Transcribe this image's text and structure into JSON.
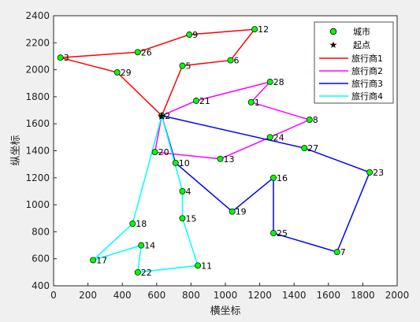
{
  "chart_data": {
    "type": "scatter",
    "title": "",
    "xlabel": "横坐标",
    "ylabel": "纵坐标",
    "xlim": [
      0,
      2000
    ],
    "ylim": [
      400,
      2400
    ],
    "xticks": [
      0,
      200,
      400,
      600,
      800,
      1000,
      1200,
      1400,
      1600,
      1800,
      2000
    ],
    "yticks": [
      400,
      600,
      800,
      1000,
      1200,
      1400,
      1600,
      1800,
      2000,
      2200,
      2400
    ],
    "grid": false,
    "legend_position": "top-right",
    "legend": {
      "cities": "城市",
      "start": "起点",
      "route1": "旅行商1",
      "route2": "旅行商2",
      "route3": "旅行商3",
      "route4": "旅行商4"
    },
    "start_city": "2",
    "cities": [
      {
        "id": "1",
        "x": 1150,
        "y": 1760
      },
      {
        "id": "2",
        "x": 630,
        "y": 1660
      },
      {
        "id": "3",
        "x": 40,
        "y": 2090
      },
      {
        "id": "4",
        "x": 750,
        "y": 1100
      },
      {
        "id": "5",
        "x": 750,
        "y": 2030
      },
      {
        "id": "6",
        "x": 1030,
        "y": 2070
      },
      {
        "id": "7",
        "x": 1650,
        "y": 650
      },
      {
        "id": "8",
        "x": 1490,
        "y": 1630
      },
      {
        "id": "9",
        "x": 790,
        "y": 2260
      },
      {
        "id": "10",
        "x": 710,
        "y": 1310
      },
      {
        "id": "11",
        "x": 840,
        "y": 550
      },
      {
        "id": "12",
        "x": 1170,
        "y": 2300
      },
      {
        "id": "13",
        "x": 970,
        "y": 1340
      },
      {
        "id": "14",
        "x": 510,
        "y": 700
      },
      {
        "id": "15",
        "x": 750,
        "y": 900
      },
      {
        "id": "16",
        "x": 1280,
        "y": 1200
      },
      {
        "id": "17",
        "x": 230,
        "y": 590
      },
      {
        "id": "18",
        "x": 460,
        "y": 860
      },
      {
        "id": "19",
        "x": 1040,
        "y": 950
      },
      {
        "id": "20",
        "x": 590,
        "y": 1390
      },
      {
        "id": "21",
        "x": 830,
        "y": 1770
      },
      {
        "id": "22",
        "x": 490,
        "y": 500
      },
      {
        "id": "23",
        "x": 1840,
        "y": 1240
      },
      {
        "id": "24",
        "x": 1260,
        "y": 1500
      },
      {
        "id": "25",
        "x": 1280,
        "y": 790
      },
      {
        "id": "26",
        "x": 490,
        "y": 2130
      },
      {
        "id": "27",
        "x": 1460,
        "y": 1420
      },
      {
        "id": "28",
        "x": 1260,
        "y": 1910
      },
      {
        "id": "29",
        "x": 370,
        "y": 1980
      }
    ],
    "routes": [
      {
        "name": "旅行商1",
        "color": "#ff0000",
        "path": [
          "2",
          "5",
          "6",
          "12",
          "9",
          "26",
          "3",
          "29",
          "2"
        ]
      },
      {
        "name": "旅行商2",
        "color": "#ff00ff",
        "path": [
          "2",
          "21",
          "28",
          "1",
          "8",
          "24",
          "13",
          "20",
          "2"
        ]
      },
      {
        "name": "旅行商3",
        "color": "#0000ff",
        "path": [
          "2",
          "27",
          "23",
          "7",
          "25",
          "16",
          "19",
          "10",
          "2"
        ]
      },
      {
        "name": "旅行商4",
        "color": "#00ffff",
        "path": [
          "2",
          "4",
          "15",
          "11",
          "22",
          "14",
          "17",
          "18",
          "2"
        ]
      }
    ],
    "marker_color": "#00ff00"
  }
}
